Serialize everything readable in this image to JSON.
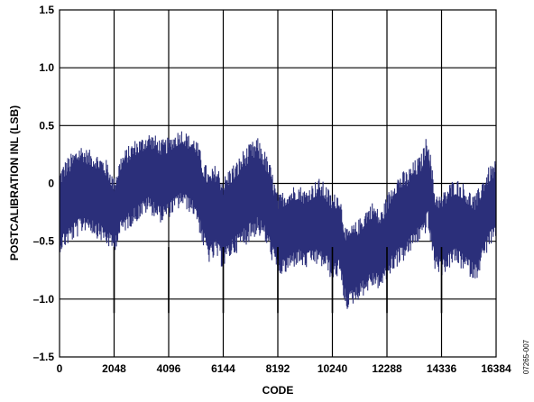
{
  "chart_data": {
    "type": "area",
    "title": "",
    "xlabel": "CODE",
    "ylabel": "POSTCALIBRATION INL (LSB)",
    "xlim": [
      0,
      16384
    ],
    "ylim": [
      -1.5,
      1.5
    ],
    "x_ticks": [
      0,
      2048,
      4096,
      6144,
      8192,
      10240,
      12288,
      14336,
      16384
    ],
    "x_tick_labels": [
      "0",
      "2048",
      "4096",
      "6144",
      "8192",
      "10240",
      "12288",
      "14336",
      "16384"
    ],
    "y_ticks": [
      -1.5,
      -1.0,
      -0.5,
      0,
      0.5,
      1.0,
      1.5
    ],
    "y_tick_labels": [
      "–1.5",
      "–1.0",
      "–0.5",
      "0",
      "0.5",
      "1.0",
      "1.5"
    ],
    "grid": true,
    "series_color": "#2b2f7a",
    "series": [
      {
        "x": [
          0,
          256,
          512,
          768,
          1024,
          1280,
          1536,
          1792,
          2048,
          2304,
          2560,
          2816,
          3072,
          3328,
          3584,
          3840,
          4096,
          4352,
          4608,
          4864,
          5120,
          5376,
          5632,
          5888,
          6144,
          6400,
          6656,
          6912,
          7168,
          7424,
          7680,
          7936,
          8192,
          8448,
          8704,
          8960,
          9216,
          9472,
          9728,
          9984,
          10240,
          10496,
          10752,
          11008,
          11264,
          11520,
          11776,
          12032,
          12288,
          12544,
          12800,
          13056,
          13312,
          13568,
          13824,
          14080,
          14336,
          14592,
          14848,
          15104,
          15360,
          15616,
          15872,
          16128,
          16384
        ],
        "upper": [
          0.12,
          0.22,
          0.28,
          0.35,
          0.3,
          0.28,
          0.25,
          0.2,
          0.05,
          0.25,
          0.32,
          0.38,
          0.4,
          0.45,
          0.42,
          0.38,
          0.4,
          0.45,
          0.48,
          0.42,
          0.4,
          0.22,
          0.1,
          0.18,
          0.05,
          0.15,
          0.2,
          0.3,
          0.35,
          0.4,
          0.3,
          0.15,
          -0.1,
          -0.05,
          -0.02,
          0.0,
          -0.05,
          0.0,
          0.05,
          0.0,
          -0.1,
          -0.05,
          -0.4,
          -0.35,
          -0.3,
          -0.2,
          -0.15,
          -0.25,
          -0.1,
          0.05,
          0.1,
          0.12,
          0.2,
          0.25,
          0.45,
          -0.05,
          -0.1,
          0.0,
          0.05,
          0.02,
          -0.05,
          -0.1,
          0.05,
          0.15,
          0.2
        ],
        "lower": [
          -0.6,
          -0.55,
          -0.5,
          -0.45,
          -0.4,
          -0.45,
          -0.5,
          -0.55,
          -0.6,
          -0.45,
          -0.4,
          -0.35,
          -0.3,
          -0.25,
          -0.3,
          -0.35,
          -0.3,
          -0.25,
          -0.2,
          -0.25,
          -0.3,
          -0.55,
          -0.7,
          -0.65,
          -0.75,
          -0.65,
          -0.6,
          -0.55,
          -0.5,
          -0.45,
          -0.5,
          -0.65,
          -0.8,
          -0.8,
          -0.75,
          -0.7,
          -0.75,
          -0.7,
          -0.72,
          -0.75,
          -0.85,
          -0.8,
          -1.1,
          -1.05,
          -1.0,
          -0.95,
          -0.9,
          -0.92,
          -0.85,
          -0.75,
          -0.7,
          -0.65,
          -0.55,
          -0.5,
          -0.4,
          -0.75,
          -0.8,
          -0.75,
          -0.7,
          -0.75,
          -0.8,
          -0.85,
          -0.7,
          -0.55,
          -0.5
        ]
      }
    ]
  },
  "figure_id": "07265-007"
}
